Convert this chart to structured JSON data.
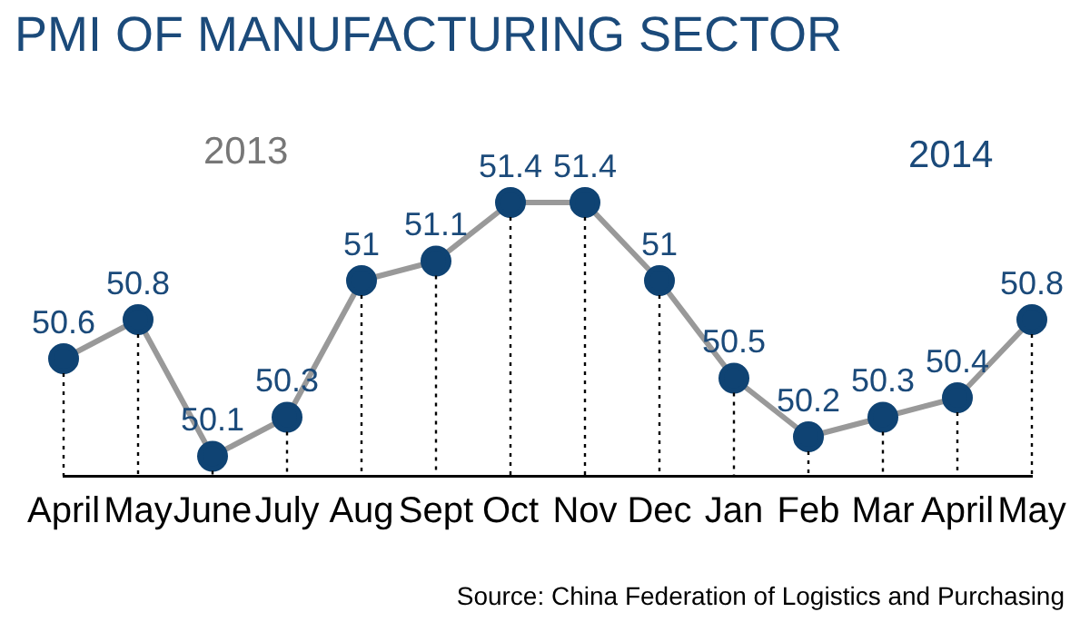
{
  "chart_data": {
    "type": "line",
    "title": "PMI OF MANUFACTURING SECTOR",
    "categories": [
      "April",
      "May",
      "June",
      "July",
      "Aug",
      "Sept",
      "Oct",
      "Nov",
      "Dec",
      "Jan",
      "Feb",
      "Mar",
      "April",
      "May"
    ],
    "series": [
      {
        "color": "#999999",
        "values": [
          50.6,
          50.8,
          50.1,
          50.3,
          51,
          51.1,
          51.4,
          51.4,
          51,
          50.5,
          50.2,
          50.3,
          50.4,
          50.8
        ]
      }
    ],
    "marker": "circle",
    "data_labels": true,
    "grid": "x",
    "legend": false,
    "tick_labels": "x",
    "annotations": [
      "2013",
      "2014",
      "Source: China Federation of Logistics and Purchasing"
    ]
  }
}
